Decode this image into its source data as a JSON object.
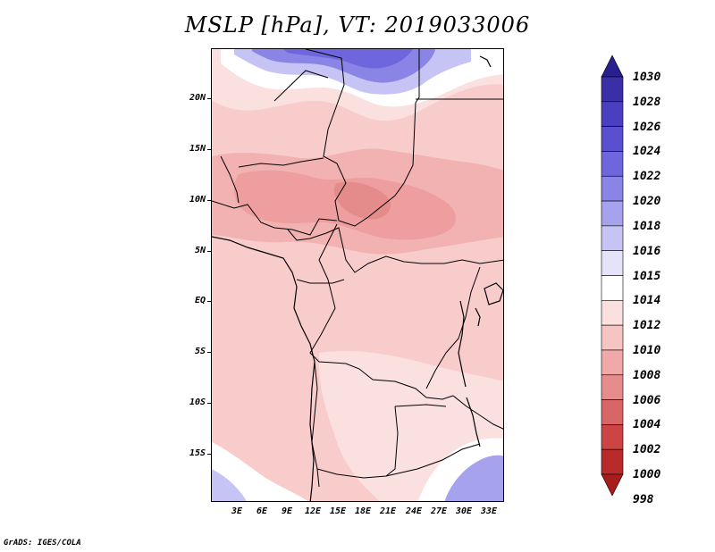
{
  "title": "MSLP [hPa], VT: 2019033006",
  "y_axis_labels": [
    "20N",
    "15N",
    "10N",
    "5N",
    "EQ",
    "5S",
    "10S",
    "15S"
  ],
  "x_axis_labels": [
    "3E",
    "6E",
    "9E",
    "12E",
    "15E",
    "18E",
    "21E",
    "24E",
    "27E",
    "30E",
    "33E"
  ],
  "colorbar": {
    "labels": [
      "1030",
      "1028",
      "1026",
      "1024",
      "1022",
      "1020",
      "1018",
      "1016",
      "1015",
      "1014",
      "1012",
      "1010",
      "1008",
      "1006",
      "1004",
      "1002",
      "1000",
      "998"
    ],
    "colors": [
      "#2a1f8f",
      "#3b2fa8",
      "#4a3fc0",
      "#5a50cf",
      "#6e66dc",
      "#8a84e6",
      "#a6a2ee",
      "#c6c4f4",
      "#e4e3f9",
      "#ffffff",
      "#fbe0e0",
      "#f7c4c4",
      "#f0a8a8",
      "#e68c8c",
      "#d96666",
      "#cc4444",
      "#bb2a2a",
      "#a81c1c"
    ]
  },
  "credit": "GrADS: IGES/COLA"
}
